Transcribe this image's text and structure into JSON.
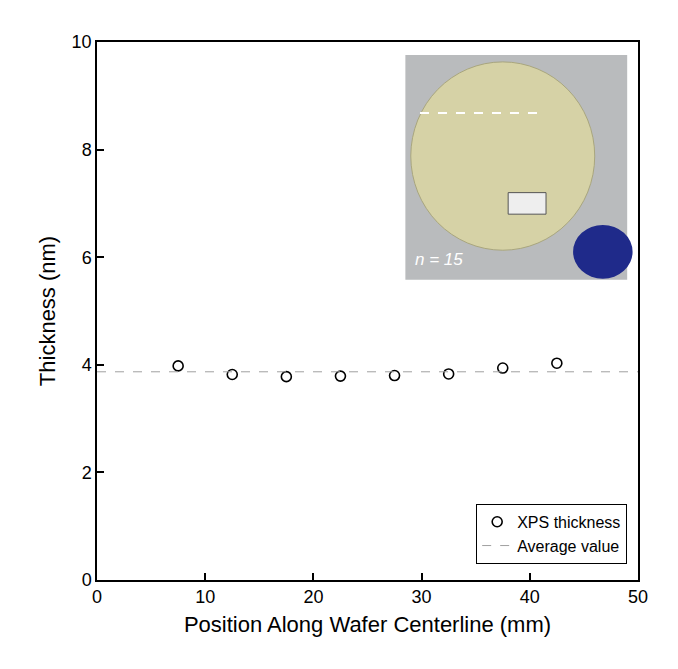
{
  "chart_data": {
    "type": "scatter",
    "x_label": "Position Along Wafer Centerline (mm)",
    "y_label": "Thickness (nm)",
    "series": [
      {
        "name": "XPS thickness",
        "type": "scatter",
        "marker": "open-circle",
        "color": "#000000",
        "x": [
          7.5,
          12.5,
          17.5,
          22.5,
          27.5,
          32.5,
          37.5,
          42.5
        ],
        "values": [
          3.98,
          3.82,
          3.78,
          3.79,
          3.8,
          3.83,
          3.94,
          4.03
        ]
      },
      {
        "name": "Average value",
        "type": "hline",
        "line_style": "dashed",
        "color": "#a0a0a0",
        "values": [
          3.87
        ]
      }
    ],
    "xlim": [
      0,
      50
    ],
    "xticks": [
      0,
      10,
      20,
      30,
      40,
      50
    ],
    "ylim": [
      0,
      10
    ],
    "yticks": [
      0,
      2,
      4,
      6,
      8,
      10
    ],
    "grid": false,
    "legend": "lower right",
    "annotations": [
      "n = 15"
    ]
  }
}
